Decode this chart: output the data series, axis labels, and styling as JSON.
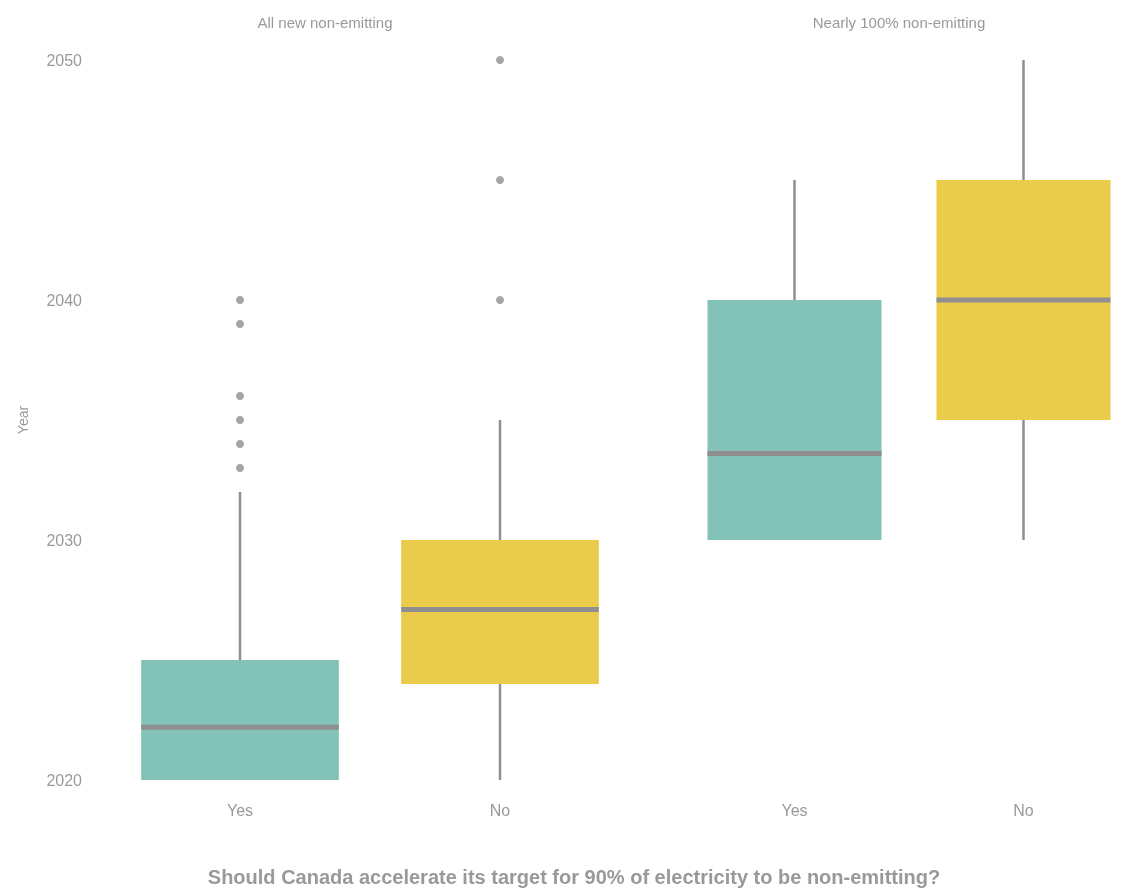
{
  "chart_data": [
    {
      "type": "box",
      "title": "All new non-emitting",
      "xlabel": "Should Canada accelerate its target for 90% of electricity to be non-emitting?",
      "ylabel": "Year",
      "categories": [
        "Yes",
        "No"
      ],
      "colors": [
        "#83c2b8",
        "#ebcb4a"
      ],
      "ylim": [
        2020,
        2050
      ],
      "yticks": [
        2020,
        2030,
        2040,
        2050
      ],
      "grid": false,
      "boxes": [
        {
          "low": 2020,
          "q1": 2020,
          "median": 2022.2,
          "q3": 2025,
          "high": 2032,
          "outliers": [
            2033,
            2034,
            2035,
            2036,
            2039,
            2040
          ]
        },
        {
          "low": 2020,
          "q1": 2024,
          "median": 2027.1,
          "q3": 2030,
          "high": 2035,
          "outliers": [
            2040,
            2045,
            2050
          ]
        }
      ]
    },
    {
      "type": "box",
      "title": "Nearly 100% non-emitting",
      "categories": [
        "Yes",
        "No"
      ],
      "colors": [
        "#83c2b8",
        "#ebcb4a"
      ],
      "ylim": [
        2020,
        2050
      ],
      "yticks": [
        2020,
        2030,
        2040,
        2050
      ],
      "grid": false,
      "tick_labels": "x",
      "boxes": [
        {
          "low": 2030,
          "q1": 2030,
          "median": 2033.6,
          "q3": 2040,
          "high": 2045
        },
        {
          "low": 2030,
          "q1": 2035,
          "median": 2040,
          "q3": 2045,
          "high": 2050
        }
      ]
    }
  ]
}
